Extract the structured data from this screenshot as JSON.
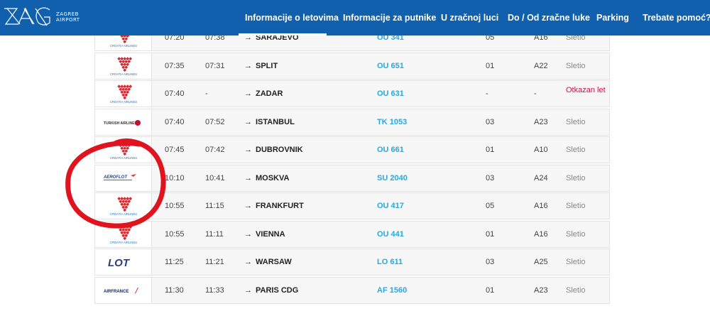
{
  "header": {
    "logo_line1": "ZAGREB",
    "logo_line2": "AIRPORT",
    "nav": [
      {
        "label": "Informacije o letovima",
        "active": true
      },
      {
        "label": "Informacije za putnike",
        "active": false
      },
      {
        "label": "U zračnoj luci",
        "active": false
      },
      {
        "label": "Do / Od zračne luke",
        "active": false
      },
      {
        "label": "Parking",
        "active": false
      },
      {
        "label": "Trebate pomoć?",
        "active": false
      }
    ]
  },
  "flights": [
    {
      "airline": "croatia",
      "airline_label": "CROATIA AIRLINES",
      "scheduled": "07:20",
      "actual": "07:38",
      "destination": "SARAJEVO",
      "flight": "OU 341",
      "gate": "05",
      "stand": "A16",
      "status": "Sletio",
      "cancelled": false
    },
    {
      "airline": "croatia",
      "airline_label": "CROATIA AIRLINES",
      "scheduled": "07:35",
      "actual": "07:31",
      "destination": "SPLIT",
      "flight": "OU 651",
      "gate": "01",
      "stand": "A22",
      "status": "Sletio",
      "cancelled": false
    },
    {
      "airline": "croatia",
      "airline_label": "CROATIA AIRLINES",
      "scheduled": "07:40",
      "actual": "-",
      "destination": "ZADAR",
      "flight": "OU 631",
      "gate": "-",
      "stand": "-",
      "status": "Otkazan let",
      "cancelled": true
    },
    {
      "airline": "turkish",
      "airline_label": "TURKISH AIRLINES",
      "scheduled": "07:40",
      "actual": "07:52",
      "destination": "ISTANBUL",
      "flight": "TK 1053",
      "gate": "03",
      "stand": "A23",
      "status": "Sletio",
      "cancelled": false
    },
    {
      "airline": "croatia",
      "airline_label": "CROATIA AIRLINES",
      "scheduled": "07:45",
      "actual": "07:42",
      "destination": "DUBROVNIK",
      "flight": "OU 661",
      "gate": "01",
      "stand": "A10",
      "status": "Sletio",
      "cancelled": false
    },
    {
      "airline": "aeroflot",
      "airline_label": "AEROFLOT",
      "scheduled": "10:10",
      "actual": "10:41",
      "destination": "MOSKVA",
      "flight": "SU 2040",
      "gate": "03",
      "stand": "A24",
      "status": "Sletio",
      "cancelled": false
    },
    {
      "airline": "croatia",
      "airline_label": "CROATIA AIRLINES",
      "scheduled": "10:55",
      "actual": "11:15",
      "destination": "FRANKFURT",
      "flight": "OU 417",
      "gate": "05",
      "stand": "A16",
      "status": "Sletio",
      "cancelled": false
    },
    {
      "airline": "croatia",
      "airline_label": "CROATIA AIRLINES",
      "scheduled": "10:55",
      "actual": "11:11",
      "destination": "VIENNA",
      "flight": "OU 441",
      "gate": "01",
      "stand": "A16",
      "status": "Sletio",
      "cancelled": false
    },
    {
      "airline": "lot",
      "airline_label": "LOT",
      "scheduled": "11:25",
      "actual": "11:21",
      "destination": "WARSAW",
      "flight": "LO 611",
      "gate": "03",
      "stand": "A25",
      "status": "Sletio",
      "cancelled": false
    },
    {
      "airline": "airfrance",
      "airline_label": "AIRFRANCE",
      "scheduled": "11:30",
      "actual": "11:33",
      "destination": "PARIS CDG",
      "flight": "AF 1560",
      "gate": "01",
      "stand": "A23",
      "status": "Sletio",
      "cancelled": false
    }
  ],
  "colors": {
    "header": "#1160ad",
    "flight_link": "#27a9e1",
    "cancelled": "#d0104c",
    "annotation": "#e0141e"
  }
}
